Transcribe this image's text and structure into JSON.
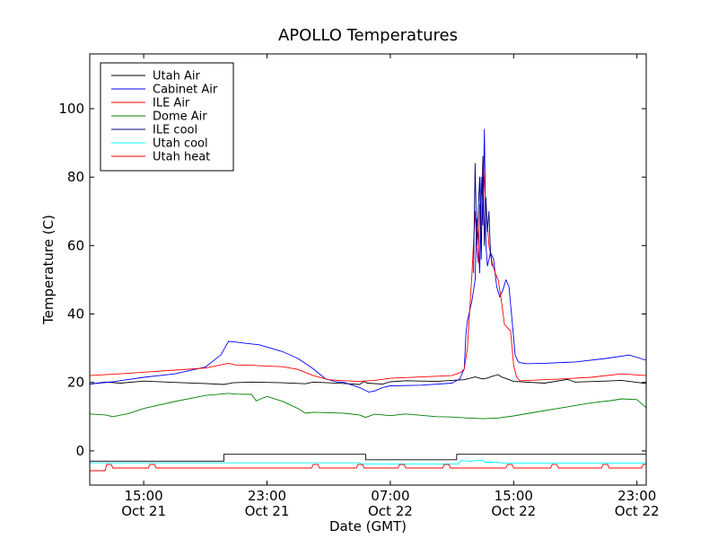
{
  "chart_data": {
    "type": "line",
    "title": "APOLLO Temperatures",
    "xlabel": "Date (GMT)",
    "ylabel": "Temperature (C)",
    "xlim": [
      11.5,
      47.6
    ],
    "ylim": [
      -10,
      116
    ],
    "x_unit": "hours since Oct 21 00:00 GMT",
    "yticks": [
      0,
      20,
      40,
      60,
      80,
      100
    ],
    "xticks": [
      {
        "x": 15,
        "time": "15:00",
        "date": "Oct 21"
      },
      {
        "x": 23,
        "time": "23:00",
        "date": "Oct 21"
      },
      {
        "x": 31,
        "time": "07:00",
        "date": "Oct 22"
      },
      {
        "x": 39,
        "time": "15:00",
        "date": "Oct 22"
      },
      {
        "x": 47,
        "time": "23:00",
        "date": "Oct 22"
      }
    ],
    "legend_position": "top-left",
    "series": [
      {
        "name": "Utah Air",
        "color": "#000000",
        "x": [
          11.5,
          12.5,
          13.5,
          15,
          17,
          19,
          20.2,
          20.8,
          22,
          24,
          25.5,
          26,
          28,
          29,
          29.3,
          29.5,
          30.5,
          31,
          32,
          34,
          35,
          35.8,
          36.5,
          37,
          37.3,
          37.6,
          38,
          38.2,
          38.6,
          39,
          41,
          42.5,
          43,
          45,
          46,
          47.6
        ],
        "y": [
          19.5,
          20.1,
          19.8,
          20.4,
          20.0,
          19.7,
          19.4,
          19.9,
          20.1,
          19.9,
          19.6,
          20.1,
          19.7,
          19.4,
          20.3,
          19.8,
          19.5,
          20.2,
          20.5,
          20.3,
          20.6,
          20.8,
          21.6,
          21.0,
          21.3,
          21.8,
          22.3,
          21.6,
          21.0,
          20.3,
          19.8,
          20.9,
          20.1,
          20.4,
          20.6,
          19.7
        ]
      },
      {
        "name": "Cabinet Air",
        "color": "#0000ff",
        "x": [
          11.5,
          13,
          15,
          17,
          19,
          20,
          20.5,
          20.8,
          21.5,
          22.5,
          24,
          25,
          26,
          26.8,
          27.5,
          28,
          29,
          29.6,
          30,
          30.5,
          31,
          33,
          35,
          35.5,
          35.8,
          35.9,
          36,
          36.3,
          36.5,
          36.6,
          36.7,
          36.8,
          36.9,
          37.0,
          37.1,
          37.2,
          37.3,
          37.5,
          37.7,
          37.9,
          38.1,
          38.3,
          38.5,
          38.7,
          38.9,
          39.1,
          39.3,
          39.5,
          39.8,
          40,
          41,
          43,
          45,
          46.5,
          47.6
        ],
        "y": [
          19.5,
          20.2,
          21.5,
          22.5,
          24.5,
          28,
          32,
          31.9,
          31.5,
          31,
          29,
          27,
          24,
          21,
          20.2,
          20,
          18.5,
          17.2,
          17.5,
          18.5,
          19,
          19.2,
          19.8,
          21,
          24,
          34,
          38,
          44,
          50,
          68,
          62,
          52,
          80,
          66,
          94,
          60,
          54,
          58,
          56,
          48,
          45,
          47,
          50,
          48,
          38,
          28,
          26,
          25.7,
          25.5,
          25.5,
          25.6,
          26,
          27,
          28,
          26.5
        ]
      },
      {
        "name": "ILE Air",
        "color": "#ff0000",
        "x": [
          11.5,
          13,
          15,
          17,
          19,
          20.5,
          21,
          22,
          23,
          24,
          25,
          26,
          27,
          28,
          29,
          30,
          31,
          33,
          35,
          35.6,
          35.8,
          36,
          36.3,
          36.5,
          36.6,
          36.7,
          36.8,
          36.9,
          37.0,
          37.1,
          37.2,
          37.3,
          37.4,
          37.6,
          37.8,
          38,
          38.2,
          38.4,
          38.6,
          38.8,
          39,
          39.2,
          39.4,
          40,
          42,
          44,
          46,
          47.6
        ],
        "y": [
          22,
          22.4,
          23,
          23.6,
          24.2,
          25.6,
          25.1,
          25,
          24.8,
          24.6,
          23.8,
          22,
          20.8,
          20.5,
          20.3,
          20.6,
          21.2,
          21.6,
          22,
          23,
          24,
          30,
          52,
          70,
          60,
          55,
          72,
          60,
          86,
          78,
          72,
          66,
          60,
          55,
          52,
          50,
          44,
          37,
          36,
          35,
          25,
          21.5,
          20.5,
          20.6,
          21,
          21.5,
          22.5,
          22
        ]
      },
      {
        "name": "Dome Air",
        "color": "#008000",
        "x": [
          11.5,
          12.5,
          13,
          14,
          15,
          17,
          19,
          20.5,
          21,
          22,
          22.3,
          22.6,
          23,
          24,
          25,
          25.5,
          26,
          28,
          29,
          29.4,
          30,
          31,
          32,
          34,
          35,
          36,
          37,
          38,
          39,
          40,
          42,
          44,
          45.5,
          46,
          47,
          47.6
        ],
        "y": [
          10.8,
          10.5,
          10,
          10.9,
          12.4,
          14.4,
          16.2,
          16.8,
          16.6,
          16.5,
          14.6,
          15.2,
          15.9,
          14.5,
          12.4,
          11,
          11.3,
          11,
          10.5,
          9.8,
          10.7,
          10.3,
          10.8,
          10,
          9.9,
          9.6,
          9.4,
          9.6,
          10.2,
          11,
          12.5,
          14,
          14.8,
          15.2,
          15,
          12.6
        ]
      },
      {
        "name": "ILE cool",
        "color": "#000080",
        "x": [
          36.4,
          36.5,
          36.6,
          36.7,
          36.8,
          36.9,
          37.0,
          37.1,
          37.2,
          37.3,
          37.4,
          37.5,
          37.6
        ],
        "y": [
          52,
          84,
          60,
          70,
          80,
          56,
          86,
          60,
          74,
          64,
          70,
          58,
          54
        ]
      },
      {
        "name": "Utah cool",
        "color": "#00ffff",
        "x": [
          11.5,
          29,
          29.1,
          35.4,
          35.6,
          36.2,
          36.5,
          37,
          37.1,
          38,
          38.2,
          47.6
        ],
        "y": [
          -3.5,
          -3.5,
          -3.8,
          -3.8,
          -2.8,
          -3.1,
          -2.8,
          -2.8,
          -3.3,
          -3.3,
          -3.6,
          -3.6
        ]
      },
      {
        "name": "Utah heat",
        "color": "#ff0000",
        "x": [
          11.5,
          12.5,
          12.6,
          12.9,
          13.0,
          15.3,
          15.4,
          15.7,
          15.8,
          25.9,
          26.0,
          26.3,
          26.4,
          28.8,
          28.9,
          29.2,
          29.3,
          31.5,
          31.6,
          31.9,
          32.0,
          34.4,
          34.5,
          34.8,
          34.9,
          38.5,
          38.6,
          38.9,
          39.0,
          41.4,
          41.5,
          41.8,
          41.9,
          44.7,
          44.8,
          45.1,
          45.2,
          47.3,
          47.4,
          47.6
        ],
        "y": [
          -5.8,
          -5.8,
          -4,
          -4,
          -5,
          -5,
          -4,
          -4,
          -5,
          -5,
          -4,
          -4,
          -5,
          -5,
          -4,
          -4,
          -5,
          -5,
          -4,
          -4,
          -5,
          -5,
          -4,
          -4,
          -5,
          -5,
          -4,
          -4,
          -5,
          -5,
          -4,
          -4,
          -5,
          -5,
          -4,
          -4,
          -5,
          -5,
          -4,
          -4
        ]
      },
      {
        "name": "",
        "color": "#000000",
        "x": [
          11.5,
          20.2,
          20.2,
          29.4,
          29.4,
          35.3,
          35.3,
          47.6
        ],
        "y": [
          -3,
          -3,
          -1,
          -1,
          -2.6,
          -2.6,
          -1,
          -1
        ]
      }
    ]
  }
}
